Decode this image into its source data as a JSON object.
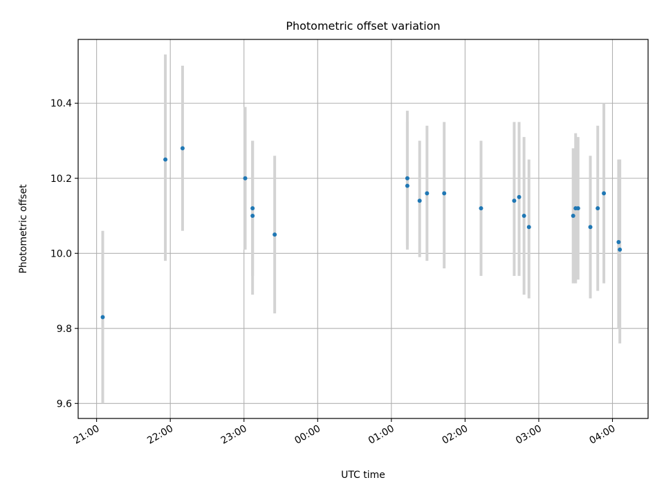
{
  "chart_data": {
    "type": "scatter",
    "title": "Photometric offset variation",
    "xlabel": "UTC time",
    "ylabel": "Photometric offset",
    "x_tick_labels": [
      "21:00",
      "22:00",
      "23:00",
      "00:00",
      "01:00",
      "02:00",
      "03:00",
      "04:00"
    ],
    "y_tick_labels": [
      "9.6",
      "9.8",
      "10.0",
      "10.2",
      "10.4"
    ],
    "y_ticks": [
      9.6,
      9.8,
      10.0,
      10.2,
      10.4
    ],
    "x_ticks": [
      "21:00",
      "22:00",
      "23:00",
      "00:00",
      "01:00",
      "02:00",
      "03:00",
      "04:00"
    ],
    "x_ticks_hours": [
      21,
      22,
      23,
      24,
      25,
      26,
      27,
      28
    ],
    "xlim": [
      "20:45",
      "04:29"
    ],
    "ylim": [
      9.56,
      10.57
    ],
    "grid": true,
    "points": [
      {
        "x": "21:05",
        "y": 9.83,
        "low": 9.6,
        "high": 10.06
      },
      {
        "x": "21:56",
        "y": 10.25,
        "low": 9.98,
        "high": 10.53
      },
      {
        "x": "22:10",
        "y": 10.28,
        "low": 10.06,
        "high": 10.5
      },
      {
        "x": "23:01",
        "y": 10.2,
        "low": 10.01,
        "high": 10.39
      },
      {
        "x": "23:07",
        "y": 10.12,
        "low": 9.94,
        "high": 10.3
      },
      {
        "x": "23:07",
        "y": 10.1,
        "low": 9.89,
        "high": 10.3
      },
      {
        "x": "23:25",
        "y": 10.05,
        "low": 9.84,
        "high": 10.26
      },
      {
        "x": "01:13",
        "y": 10.2,
        "low": 10.02,
        "high": 10.38
      },
      {
        "x": "01:13",
        "y": 10.18,
        "low": 10.01,
        "high": 10.35
      },
      {
        "x": "01:23",
        "y": 10.14,
        "low": 9.99,
        "high": 10.3
      },
      {
        "x": "01:29",
        "y": 10.16,
        "low": 9.98,
        "high": 10.34
      },
      {
        "x": "01:43",
        "y": 10.16,
        "low": 9.96,
        "high": 10.35
      },
      {
        "x": "02:13",
        "y": 10.12,
        "low": 9.94,
        "high": 10.3
      },
      {
        "x": "02:40",
        "y": 10.14,
        "low": 9.94,
        "high": 10.35
      },
      {
        "x": "02:44",
        "y": 10.15,
        "low": 9.94,
        "high": 10.35
      },
      {
        "x": "02:48",
        "y": 10.1,
        "low": 9.89,
        "high": 10.31
      },
      {
        "x": "02:52",
        "y": 10.07,
        "low": 9.88,
        "high": 10.25
      },
      {
        "x": "03:28",
        "y": 10.1,
        "low": 9.92,
        "high": 10.28
      },
      {
        "x": "03:30",
        "y": 10.12,
        "low": 9.92,
        "high": 10.32
      },
      {
        "x": "03:32",
        "y": 10.12,
        "low": 9.93,
        "high": 10.31
      },
      {
        "x": "03:42",
        "y": 10.07,
        "low": 9.88,
        "high": 10.26
      },
      {
        "x": "03:48",
        "y": 10.12,
        "low": 9.9,
        "high": 10.34
      },
      {
        "x": "03:53",
        "y": 10.16,
        "low": 9.92,
        "high": 10.4
      },
      {
        "x": "04:05",
        "y": 10.03,
        "low": 9.8,
        "high": 10.25
      },
      {
        "x": "04:06",
        "y": 10.01,
        "low": 9.76,
        "high": 10.25
      }
    ],
    "point_color": "#1f77b4",
    "errorbar_color": "#d3d3d3"
  }
}
